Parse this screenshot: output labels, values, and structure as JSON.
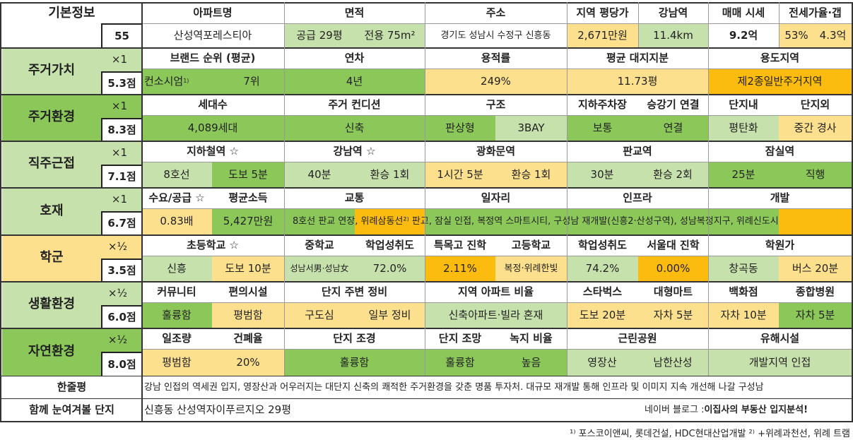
{
  "colors": {
    "green": "#8bc859",
    "lightgreen": "#c7e1ad",
    "yellow": "#fde08d",
    "orange": "#fbbb0f",
    "white": "#ffffff"
  },
  "basic": {
    "label": "기본정보",
    "number": "55",
    "headers": [
      "아파트명",
      "면적",
      "주소",
      "지역 평당가",
      "강남역",
      "매매 시세",
      "전세가율·갭"
    ],
    "apt": "산성역포레스티아",
    "area1": "공급 29평",
    "area2": "전용 75m²",
    "address": "경기도 성남시 수정구 신흥동",
    "price_per_pyeong": "2,671만원",
    "gangnam": "11.4km",
    "sale_price": "9.2억",
    "jeonse_ratio": "53%",
    "gap": "4.3억"
  },
  "sections": {
    "residential_value": {
      "label": "주거가치",
      "mult": "×1",
      "score": "5.3점",
      "headers": [
        "브랜드 순위 (평균)",
        "연차",
        "용적률",
        "평균 대지지분",
        "용도지역"
      ],
      "brand": "컨소시엄",
      "brand_sup": "1)",
      "brand_rank": "7위",
      "age": "4년",
      "far": "249%",
      "land_share": "11.73평",
      "zone": "제2종일반주거지역"
    },
    "residential_env": {
      "label": "주거환경",
      "mult": "×1",
      "score": "8.3점",
      "headers": [
        "세대수",
        "주거 컨디션",
        "구조",
        "지하주차장",
        "승강기 연결",
        "단지내",
        "단지외"
      ],
      "households": "4,089세대",
      "condition": "신축",
      "structure1": "판상형",
      "structure2": "3BAY",
      "parking": "보통",
      "elevator": "연결",
      "inside": "평탄화",
      "outside": "중간 경사"
    },
    "commute": {
      "label": "직주근접",
      "mult": "×1",
      "score": "7.1점",
      "headers": [
        "지하철역 ☆",
        "강남역 ☆",
        "광화문역",
        "판교역",
        "잠실역"
      ],
      "subway_line": "8호선",
      "subway_walk": "도보 5분",
      "gangnam_time": "40분",
      "gangnam_transfer": "환승 1회",
      "gwanghwamun_time": "1시간 5분",
      "gwanghwamun_transfer": "환승 1회",
      "pangyo_time": "30분",
      "pangyo_transfer": "환승 2회",
      "jamsil_time": "25분",
      "jamsil_transfer": "직행"
    },
    "development": {
      "label": "호재",
      "mult": "×1",
      "score": "6.7점",
      "headers": [
        "수요/공급 ☆",
        "평균소득",
        "교통",
        "일자리",
        "인프라",
        "개발"
      ],
      "supply": "0.83배",
      "income": "5,427만원",
      "long_text": "8호선 판교 연장, 위례삼동선²⁾  판교, 잠실 인접, 복정역 스마트시티, 구성남 재개발(신흥2·산성구역), 성남복정지구, 위례신도시"
    },
    "school": {
      "label": "학군",
      "mult": "×½",
      "score": "3.5점",
      "headers": [
        "초등학교 ☆",
        "중학교",
        "학업성취도",
        "특목고 진학",
        "고등학교",
        "학업성취도",
        "서울대 진학",
        "학원가"
      ],
      "elem": "신흥",
      "elem_walk": "도보 10분",
      "middle": "성남서男·성남女",
      "middle_score": "72.0%",
      "special_rate": "2.11%",
      "high": "복정·위례한빛",
      "high_score": "74.2%",
      "snu_rate": "0.00%",
      "academy": "창곡동",
      "academy_bus": "버스 20분"
    },
    "living": {
      "label": "생활환경",
      "mult": "×½",
      "score": "6.0점",
      "headers": [
        "커뮤니티",
        "편의시설",
        "단지 주변 정비",
        "지역 아파트 비율",
        "스타벅스",
        "대형마트",
        "백화점",
        "종합병원"
      ],
      "community": "훌륭함",
      "convenience": "평범함",
      "env1": "구도심",
      "env2": "일부 정비",
      "apt_ratio": "신축아파트·빌라 혼재",
      "starbucks": "도보 20분",
      "mart": "자차 5분",
      "dept": "자차 10분",
      "hospital": "자차 5분"
    },
    "nature": {
      "label": "자연환경",
      "mult": "×½",
      "score": "8.0점",
      "headers": [
        "일조량",
        "건폐율",
        "단지 조경",
        "단지 조망",
        "녹지 비율",
        "근린공원",
        "유해시설"
      ],
      "sunlight": "평범함",
      "bcr": "20%",
      "landscape": "훌륭함",
      "view": "훌륭함",
      "green_ratio": "높음",
      "park1": "영장산",
      "park2": "남한산성",
      "hazard": "개발지역 인접"
    }
  },
  "summary": {
    "label": "한줄평",
    "text": "강남 인접의 역세권 입지, 영장산과 어우러지는 대단지 신축의 쾌적한 주거환경을 갖춘 명품 투자처. 대규모 재개발 통해 인프라 및 이미지 지속 개선해 나갈 구성남"
  },
  "related": {
    "label": "함께 눈여겨볼 단지",
    "text": "신흥동 산성역자이푸르지오 29평",
    "blog_prefix": "네이버 블로그 : ",
    "blog_name": "이집사의 부동산 입지분석!"
  },
  "footnote": {
    "text": "¹⁾ 포스코이앤씨, 롯데건설, HDC현대산업개발  ²⁾ +위례과천선, 위례 트램"
  }
}
